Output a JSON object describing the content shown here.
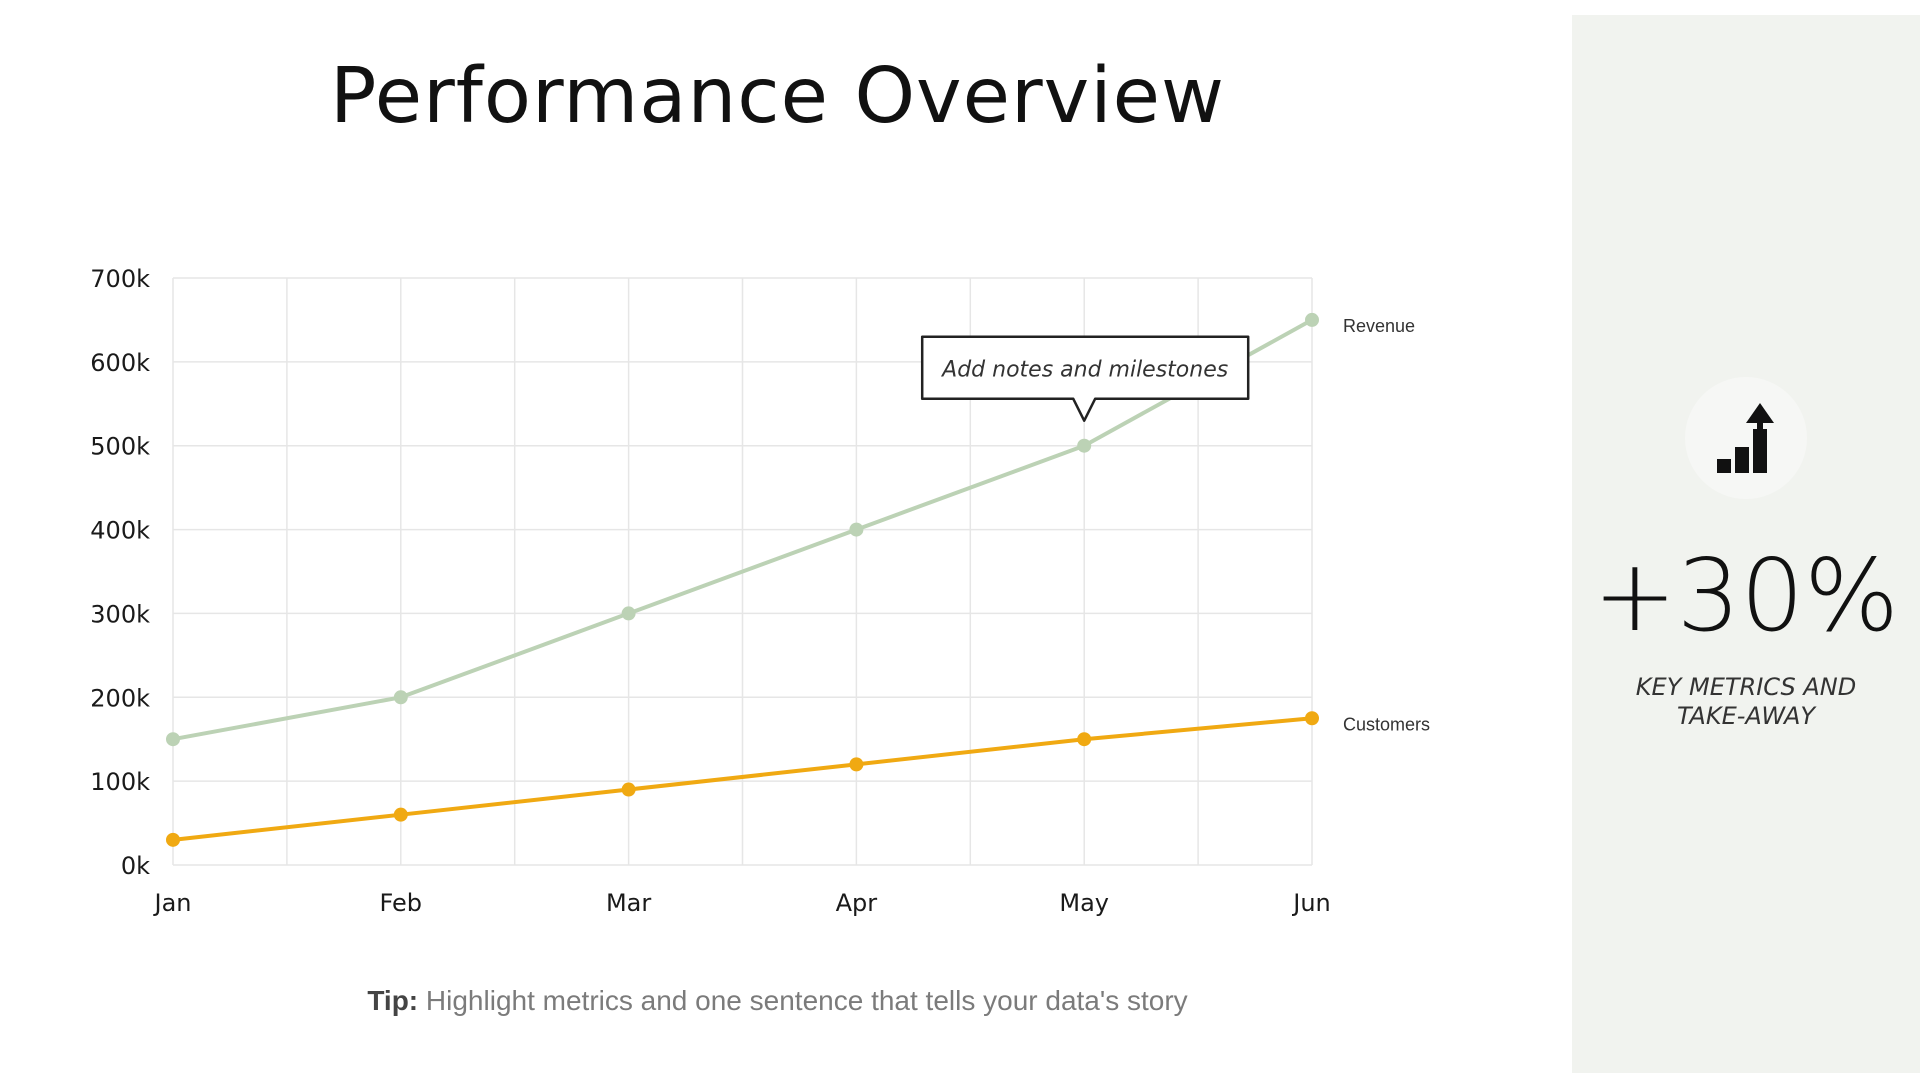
{
  "header": {
    "title": "Performance Overview"
  },
  "chart_data": {
    "type": "line",
    "categories": [
      "Jan",
      "Feb",
      "Mar",
      "Apr",
      "May",
      "Jun"
    ],
    "series": [
      {
        "name": "Revenue",
        "values": [
          150,
          200,
          300,
          400,
          500,
          650
        ],
        "color": "#bcd2b5"
      },
      {
        "name": "Customers",
        "values": [
          30,
          60,
          90,
          120,
          150,
          175
        ],
        "color": "#f0a912"
      }
    ],
    "yticks": [
      "0k",
      "100k",
      "200k",
      "300k",
      "400k",
      "500k",
      "600k",
      "700k"
    ],
    "ylim": [
      0,
      700
    ],
    "grid": true,
    "annotation": {
      "text": "Add notes and milestones",
      "category": "May",
      "series": "Revenue"
    }
  },
  "tip": {
    "label": "Tip:",
    "text": "Highlight metrics and one sentence that tells your data's story"
  },
  "side": {
    "icon": "growth-chart-icon",
    "metric": "+30%",
    "caption_line1": "KEY METRICS AND",
    "caption_line2": "TAKE-AWAY"
  }
}
